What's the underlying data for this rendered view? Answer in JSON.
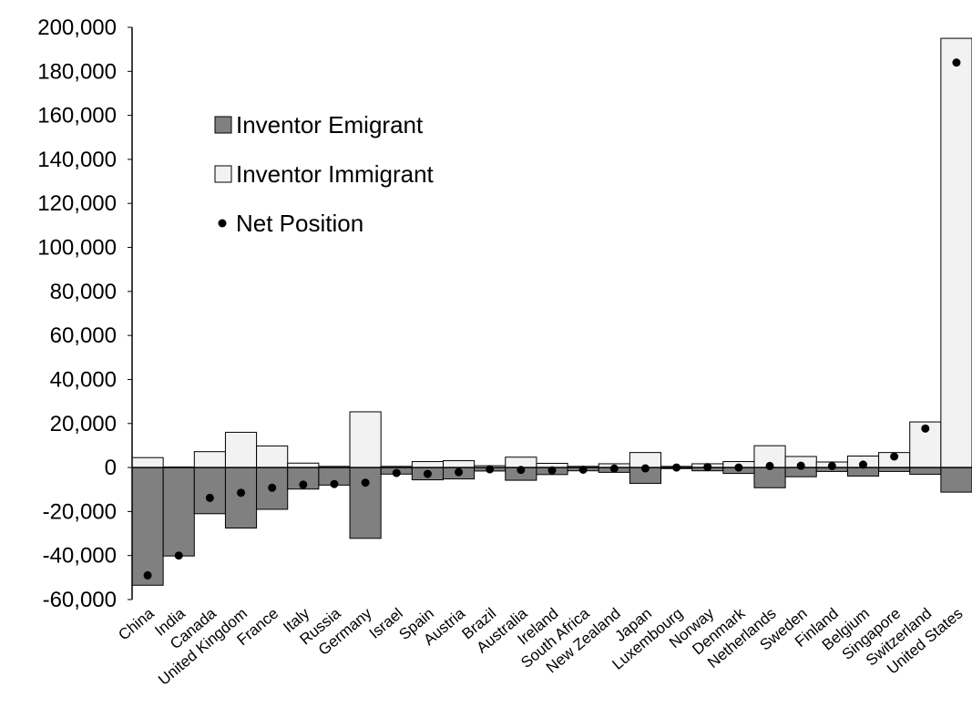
{
  "chart_data": {
    "type": "bar",
    "categories": [
      "China",
      "India",
      "Canada",
      "United Kingdom",
      "France",
      "Italy",
      "Russia",
      "Germany",
      "Israel",
      "Spain",
      "Austria",
      "Brazil",
      "Australia",
      "Ireland",
      "South Africa",
      "New Zealand",
      "Japan",
      "Luxembourg",
      "Norway",
      "Denmark",
      "Netherlands",
      "Sweden",
      "Finland",
      "Belgium",
      "Singapore",
      "Switzerland",
      "United States"
    ],
    "series": [
      {
        "name": "Inventor Emigrant",
        "style": "bar",
        "color": "#808080",
        "values": [
          -53500,
          -40200,
          -21000,
          -27500,
          -19000,
          -9800,
          -8000,
          -32200,
          -3000,
          -5600,
          -5200,
          -1600,
          -5800,
          -3200,
          -1500,
          -2200,
          -7200,
          -500,
          -1500,
          -2700,
          -9200,
          -4200,
          -1800,
          -3900,
          -1800,
          -3100,
          -11200
        ]
      },
      {
        "name": "Inventor Immigrant",
        "style": "bar",
        "color": "#f2f2f2",
        "values": [
          4500,
          200,
          7200,
          16000,
          9800,
          2000,
          500,
          25300,
          500,
          2700,
          3100,
          800,
          4700,
          1900,
          500,
          1700,
          6800,
          500,
          1700,
          2700,
          9900,
          5000,
          2500,
          5200,
          6800,
          20700,
          195000
        ]
      },
      {
        "name": "Net Position",
        "style": "point",
        "color": "#000000",
        "values": [
          -49000,
          -40000,
          -13800,
          -11500,
          -9200,
          -7800,
          -7500,
          -6900,
          -2500,
          -2900,
          -2100,
          -800,
          -1100,
          -1300,
          -1000,
          -500,
          -400,
          0,
          200,
          0,
          700,
          800,
          700,
          1300,
          5000,
          17700,
          184000
        ]
      }
    ],
    "ylim": [
      -60000,
      200000
    ],
    "yticks": [
      200000,
      180000,
      160000,
      140000,
      120000,
      100000,
      80000,
      60000,
      40000,
      20000,
      0,
      -20000,
      -40000,
      -60000
    ],
    "ytick_labels": [
      "200,000",
      "180,000",
      "160,000",
      "140,000",
      "120,000",
      "100,000",
      "80,000",
      "60,000",
      "40,000",
      "20,000",
      "0",
      "-20,000",
      "-40,000",
      "-60,000"
    ],
    "legend_placement": "upper-left",
    "grid": false,
    "title": "",
    "xlabel": "",
    "ylabel": ""
  }
}
